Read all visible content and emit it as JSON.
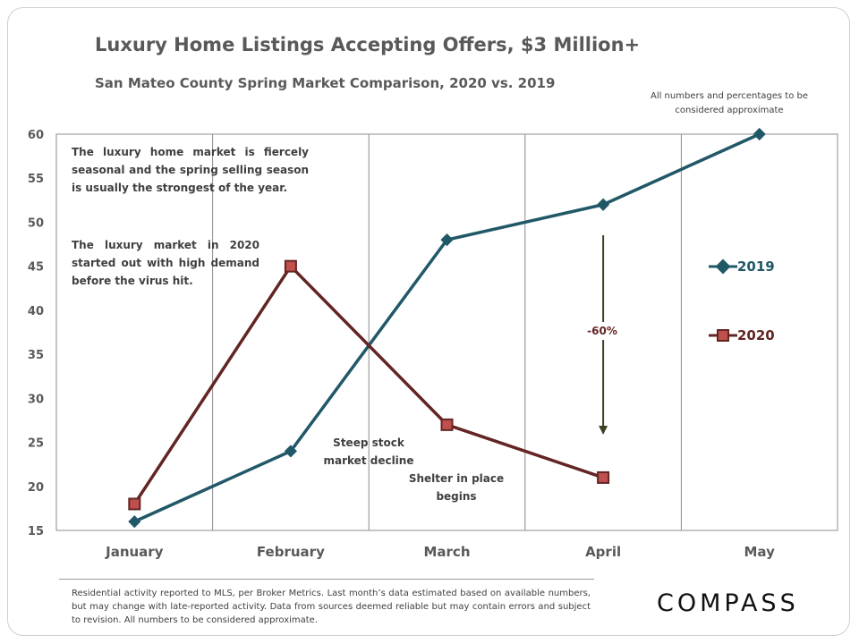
{
  "title": "Luxury Home Listings Accepting Offers, $3 Million+",
  "subtitle": "San Mateo County Spring Market Comparison,  2020 vs. 2019",
  "disclaimer": "All numbers and percentages to be considered approximate",
  "annotations": {
    "seasonal": "The luxury home market is fiercely seasonal and the spring selling season is usually the strongest of the year.",
    "demand": "The luxury market in 2020 started out with high demand before the virus hit.",
    "stock": "Steep stock market decline",
    "shelter": "Shelter in place begins",
    "change": "-60%"
  },
  "footer": "Residential activity reported to MLS, per Broker Metrics. Last month’s data estimated based on available numbers, but may change with late-reported activity. Data from sources deemed reliable but may contain errors and subject to revision. All numbers to be considered approximate.",
  "logo": "COMPASS",
  "colors": {
    "s2019": "#215868",
    "s2020": "#632523",
    "marker2020": "#c0504d"
  },
  "chart_data": {
    "type": "line",
    "categories": [
      "January",
      "February",
      "March",
      "April",
      "May"
    ],
    "series": [
      {
        "name": "2019",
        "values": [
          16,
          24,
          48,
          52,
          60
        ],
        "marker": "diamond"
      },
      {
        "name": "2020",
        "values": [
          18,
          45,
          27,
          21,
          null
        ],
        "marker": "square"
      }
    ],
    "ylim": [
      15,
      60
    ],
    "yticks": [
      15,
      20,
      25,
      30,
      35,
      40,
      45,
      50,
      55,
      60
    ],
    "legend": "right",
    "grid": "vertical"
  }
}
